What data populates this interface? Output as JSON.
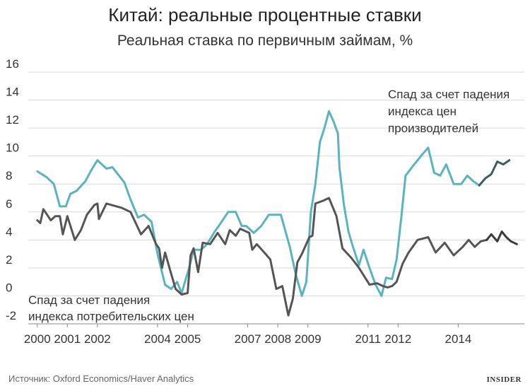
{
  "chart_data": {
    "type": "line",
    "title": "Китай: реальные процентные ставки",
    "subtitle": "Реальная ставка по первичным займам, %",
    "xlabel": "",
    "ylabel": "",
    "ylim": [
      -2,
      16
    ],
    "xlim": [
      1999.7,
      2016.2
    ],
    "yticks": [
      -2,
      0,
      2,
      4,
      6,
      8,
      10,
      12,
      14,
      16
    ],
    "xticks": [
      {
        "v": 2000,
        "label": "2000"
      },
      {
        "v": 2001,
        "label": "2001"
      },
      {
        "v": 2002,
        "label": "2002"
      },
      {
        "v": 2004,
        "label": "2004"
      },
      {
        "v": 2005,
        "label": "2005"
      },
      {
        "v": 2007,
        "label": "2007"
      },
      {
        "v": 2008,
        "label": "2008"
      },
      {
        "v": 2009,
        "label": "2009"
      },
      {
        "v": 2011,
        "label": "2011"
      },
      {
        "v": 2012,
        "label": "2012"
      },
      {
        "v": 2014,
        "label": "2014"
      }
    ],
    "grid": true,
    "series": [
      {
        "color": "#5ab4be",
        "points": [
          [
            2000.0,
            8.9
          ],
          [
            2000.3,
            8.5
          ],
          [
            2000.55,
            8.0
          ],
          [
            2000.75,
            6.4
          ],
          [
            2000.95,
            6.4
          ],
          [
            2001.1,
            7.3
          ],
          [
            2001.3,
            7.5
          ],
          [
            2001.6,
            8.2
          ],
          [
            2001.8,
            9.0
          ],
          [
            2002.0,
            9.7
          ],
          [
            2002.3,
            9.1
          ],
          [
            2002.5,
            9.2
          ],
          [
            2002.9,
            8.1
          ],
          [
            2003.1,
            6.9
          ],
          [
            2003.35,
            5.6
          ],
          [
            2003.55,
            5.8
          ],
          [
            2003.8,
            5.3
          ],
          [
            2004.0,
            3.0
          ],
          [
            2004.25,
            0.8
          ],
          [
            2004.45,
            0.5
          ],
          [
            2004.65,
            1.0
          ],
          [
            2004.8,
            0.2
          ],
          [
            2005.05,
            2.0
          ],
          [
            2005.2,
            3.3
          ],
          [
            2005.45,
            3.3
          ],
          [
            2005.65,
            3.7
          ],
          [
            2005.9,
            4.6
          ],
          [
            2006.1,
            5.2
          ],
          [
            2006.35,
            6.0
          ],
          [
            2006.6,
            6.0
          ],
          [
            2006.8,
            5.0
          ],
          [
            2006.95,
            5.0
          ],
          [
            2007.2,
            4.5
          ],
          [
            2007.45,
            5.0
          ],
          [
            2007.7,
            5.8
          ],
          [
            2007.9,
            5.8
          ],
          [
            2008.1,
            5.8
          ],
          [
            2008.4,
            3.5
          ],
          [
            2008.6,
            1.5
          ],
          [
            2008.8,
            0.0
          ],
          [
            2008.95,
            1.0
          ],
          [
            2009.1,
            6.0
          ],
          [
            2009.25,
            8.0
          ],
          [
            2009.4,
            11.0
          ],
          [
            2009.55,
            12.0
          ],
          [
            2009.7,
            13.2
          ],
          [
            2009.85,
            12.5
          ],
          [
            2010.0,
            11.6
          ],
          [
            2010.05,
            9.2
          ],
          [
            2010.2,
            6.5
          ],
          [
            2010.35,
            4.6
          ],
          [
            2010.5,
            3.5
          ],
          [
            2010.7,
            2.2
          ],
          [
            2010.85,
            3.3
          ],
          [
            2011.05,
            2.0
          ],
          [
            2011.25,
            0.8
          ],
          [
            2011.45,
            0.0
          ],
          [
            2011.6,
            1.3
          ],
          [
            2011.8,
            1.2
          ],
          [
            2011.95,
            2.6
          ],
          [
            2012.1,
            5.5
          ],
          [
            2012.25,
            8.6
          ],
          [
            2012.5,
            9.3
          ],
          [
            2012.8,
            10.1
          ],
          [
            2013.0,
            10.6
          ],
          [
            2013.2,
            8.8
          ],
          [
            2013.4,
            8.6
          ],
          [
            2013.6,
            9.4
          ],
          [
            2013.85,
            8.0
          ],
          [
            2014.1,
            8.0
          ],
          [
            2014.3,
            8.6
          ],
          [
            2014.5,
            8.2
          ],
          [
            2014.7,
            7.9
          ]
        ]
      },
      {
        "color": "#3e5d62",
        "points": [
          [
            2014.7,
            7.9
          ],
          [
            2014.9,
            8.4
          ],
          [
            2015.1,
            8.7
          ],
          [
            2015.3,
            9.6
          ],
          [
            2015.5,
            9.4
          ],
          [
            2015.7,
            9.7
          ]
        ]
      },
      {
        "color": "#555555",
        "points": [
          [
            2000.0,
            5.4
          ],
          [
            2000.1,
            5.2
          ],
          [
            2000.2,
            6.2
          ],
          [
            2000.45,
            5.4
          ],
          [
            2000.6,
            5.7
          ],
          [
            2000.75,
            5.7
          ],
          [
            2000.85,
            4.4
          ],
          [
            2001.0,
            5.7
          ],
          [
            2001.25,
            4.0
          ],
          [
            2001.45,
            4.7
          ],
          [
            2001.65,
            5.8
          ],
          [
            2001.9,
            6.5
          ],
          [
            2002.0,
            6.6
          ],
          [
            2002.05,
            5.5
          ],
          [
            2002.3,
            6.6
          ],
          [
            2002.8,
            6.3
          ],
          [
            2003.1,
            6.0
          ],
          [
            2003.45,
            4.4
          ],
          [
            2003.7,
            5.0
          ],
          [
            2003.95,
            3.7
          ],
          [
            2004.05,
            3.4
          ],
          [
            2004.15,
            2.0
          ],
          [
            2004.25,
            3.1
          ],
          [
            2004.45,
            1.6
          ],
          [
            2004.6,
            0.5
          ],
          [
            2004.8,
            0.1
          ],
          [
            2005.0,
            0.2
          ],
          [
            2005.1,
            2.9
          ],
          [
            2005.2,
            3.4
          ],
          [
            2005.35,
            1.7
          ],
          [
            2005.5,
            3.8
          ],
          [
            2005.75,
            3.7
          ],
          [
            2006.0,
            4.5
          ],
          [
            2006.25,
            3.7
          ],
          [
            2006.4,
            4.7
          ],
          [
            2006.6,
            4.3
          ],
          [
            2006.75,
            4.8
          ],
          [
            2006.95,
            4.6
          ],
          [
            2007.05,
            4.5
          ],
          [
            2007.15,
            3.3
          ],
          [
            2007.3,
            3.7
          ],
          [
            2007.55,
            3.1
          ],
          [
            2007.75,
            2.6
          ],
          [
            2007.95,
            0.5
          ],
          [
            2008.15,
            0.7
          ],
          [
            2008.35,
            -1.4
          ],
          [
            2008.5,
            -0.2
          ],
          [
            2008.65,
            2.4
          ],
          [
            2008.8,
            3.0
          ],
          [
            2009.05,
            4.2
          ],
          [
            2009.15,
            4.3
          ],
          [
            2009.25,
            6.6
          ],
          [
            2009.5,
            6.8
          ],
          [
            2009.7,
            7.0
          ],
          [
            2009.95,
            5.7
          ],
          [
            2010.15,
            3.4
          ],
          [
            2010.45,
            2.7
          ],
          [
            2010.7,
            2.0
          ],
          [
            2011.05,
            0.8
          ],
          [
            2011.3,
            0.9
          ],
          [
            2011.5,
            0.7
          ],
          [
            2011.65,
            0.6
          ],
          [
            2011.8,
            0.7
          ],
          [
            2011.95,
            1.0
          ],
          [
            2012.15,
            2.3
          ],
          [
            2012.35,
            3.1
          ],
          [
            2012.65,
            4.0
          ],
          [
            2013.0,
            4.2
          ],
          [
            2013.25,
            3.1
          ],
          [
            2013.55,
            3.8
          ],
          [
            2013.85,
            2.9
          ],
          [
            2014.15,
            3.5
          ],
          [
            2014.35,
            4.0
          ],
          [
            2014.55,
            3.5
          ],
          [
            2014.75,
            3.9
          ],
          [
            2014.95,
            4.0
          ]
        ]
      },
      {
        "color": "#3a3a3a",
        "points": [
          [
            2014.95,
            4.0
          ],
          [
            2015.1,
            4.4
          ],
          [
            2015.3,
            3.9
          ],
          [
            2015.45,
            4.6
          ],
          [
            2015.6,
            4.2
          ],
          [
            2015.75,
            3.9
          ],
          [
            2015.95,
            3.7
          ]
        ]
      }
    ],
    "annotations": {
      "ppi_line1": "Спад за счет падения",
      "ppi_line2": "индекса цен",
      "ppi_line3": "производителей",
      "cpi_line1": "Спад за счет падения",
      "cpi_line2": "индекса потребительских цен"
    }
  },
  "source": "Источник: Oxford Economics/Haver Analytics",
  "logo": "INSIDER"
}
